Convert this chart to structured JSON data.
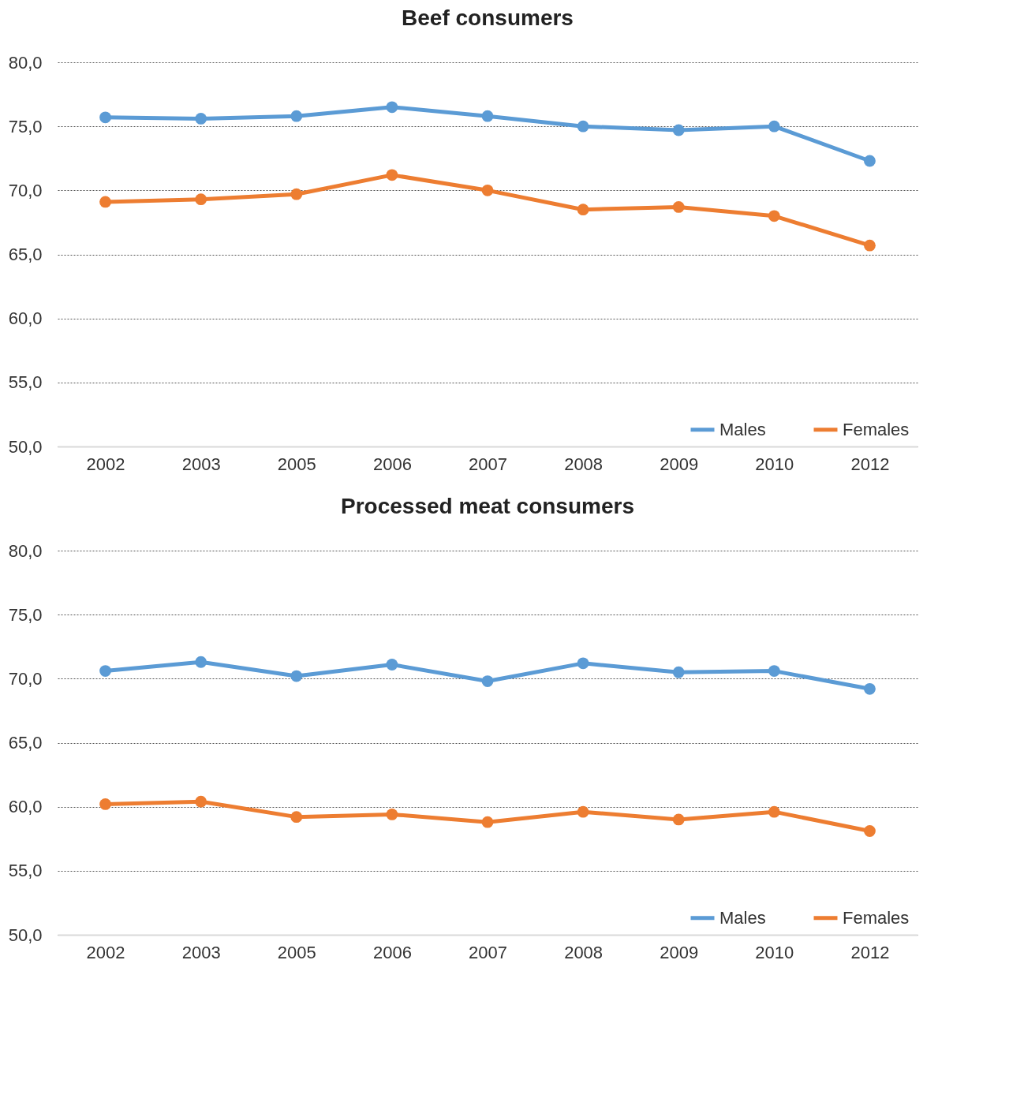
{
  "chart_data": [
    {
      "type": "line",
      "title": "Beef consumers",
      "categories": [
        "2002",
        "2003",
        "2005",
        "2006",
        "2007",
        "2008",
        "2009",
        "2010",
        "2012"
      ],
      "series": [
        {
          "name": "Males",
          "color": "#5b9bd5",
          "values": [
            75.7,
            75.6,
            75.8,
            76.5,
            75.8,
            75.0,
            74.7,
            75.0,
            72.3
          ]
        },
        {
          "name": "Females",
          "color": "#ed7d31",
          "values": [
            69.1,
            69.3,
            69.7,
            71.2,
            70.0,
            68.5,
            68.7,
            68.0,
            65.7
          ]
        }
      ],
      "ylim": [
        50,
        80
      ],
      "yticks": [
        {
          "value": 50,
          "label": "50,0"
        },
        {
          "value": 55,
          "label": "55,0"
        },
        {
          "value": 60,
          "label": "60,0"
        },
        {
          "value": 65,
          "label": "65,0"
        },
        {
          "value": 70,
          "label": "70,0"
        },
        {
          "value": 75,
          "label": "75,0"
        },
        {
          "value": 80,
          "label": "80,0"
        }
      ],
      "grid": "y",
      "legend": "bottom right",
      "marker": "circle",
      "line_style": "solid"
    },
    {
      "type": "line",
      "title": "Processed meat consumers",
      "categories": [
        "2002",
        "2003",
        "2005",
        "2006",
        "2007",
        "2008",
        "2009",
        "2010",
        "2012"
      ],
      "series": [
        {
          "name": "Males",
          "color": "#5b9bd5",
          "values": [
            70.6,
            71.3,
            70.2,
            71.1,
            69.8,
            71.2,
            70.5,
            70.6,
            69.2
          ]
        },
        {
          "name": "Females",
          "color": "#ed7d31",
          "values": [
            60.2,
            60.4,
            59.2,
            59.4,
            58.8,
            59.6,
            59.0,
            59.6,
            58.1
          ]
        }
      ],
      "ylim": [
        50,
        80
      ],
      "yticks": [
        {
          "value": 50,
          "label": "50,0"
        },
        {
          "value": 55,
          "label": "55,0"
        },
        {
          "value": 60,
          "label": "60,0"
        },
        {
          "value": 65,
          "label": "65,0"
        },
        {
          "value": 70,
          "label": "70,0"
        },
        {
          "value": 75,
          "label": "75,0"
        },
        {
          "value": 80,
          "label": "80,0"
        }
      ],
      "grid": "y",
      "legend": "bottom right",
      "marker": "circle",
      "line_style": "solid"
    }
  ]
}
